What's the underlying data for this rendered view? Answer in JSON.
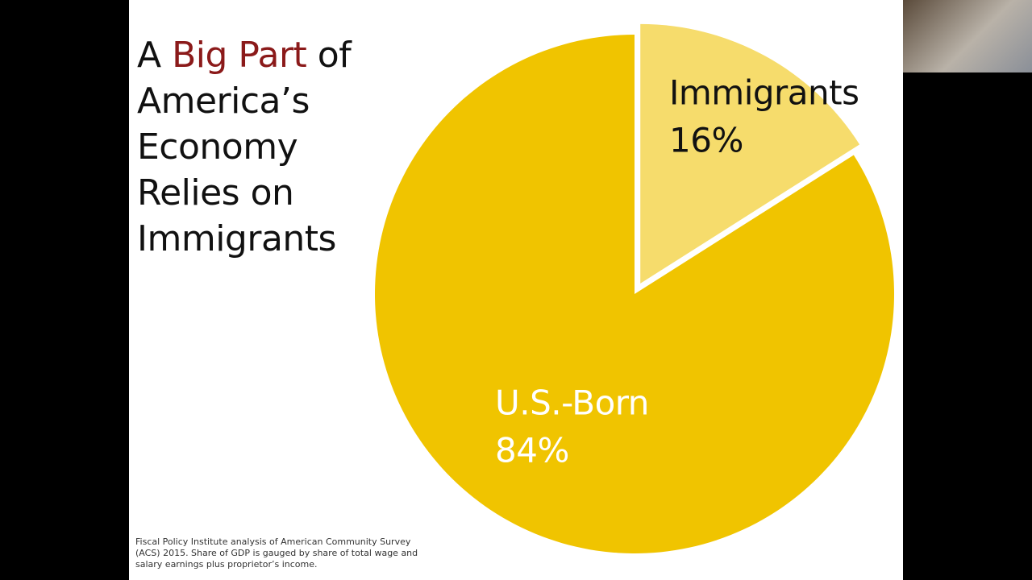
{
  "chart_data": {
    "type": "pie",
    "title": [
      "A",
      "Big Part",
      "of",
      "America’s",
      "Economy",
      "Relies on",
      "Immigrants"
    ],
    "title_highlight": {
      "index": 1,
      "color": "#8b1a1a"
    },
    "categories": [
      "Immigrants",
      "U.S.-Born"
    ],
    "values": [
      16,
      84
    ],
    "value_labels": [
      "16%",
      "84%"
    ],
    "colors": [
      "#f6dc6c",
      "#f0c400"
    ],
    "label_colors": [
      "#111111",
      "#ffffff"
    ],
    "source": "Fiscal Policy Institute analysis of American Community Survey (ACS) 2015. Share of GDP is gauged by share of total wage and salary earnings plus proprietor’s income."
  }
}
